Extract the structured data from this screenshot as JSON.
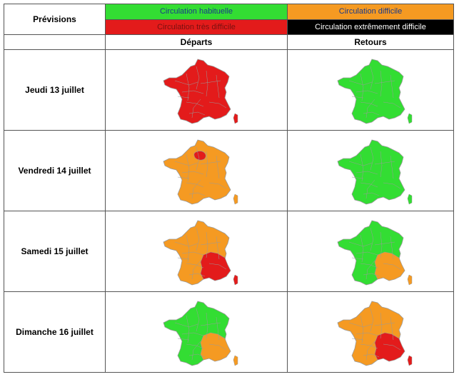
{
  "header": {
    "label": "Prévisions"
  },
  "legend": [
    {
      "label": "Circulation habituelle",
      "color": "#33dd33",
      "text_color": "#1a3a8a"
    },
    {
      "label": "Circulation difficile",
      "color": "#f59a22",
      "text_color": "#1a3a8a"
    },
    {
      "label": "Circulation très difficile",
      "color": "#e31b1b",
      "text_color": "#7a1010"
    },
    {
      "label": "Circulation extrêmement difficile",
      "color": "#000000",
      "text_color": "#ffffff"
    }
  ],
  "columns": {
    "departs": "Départs",
    "retours": "Retours"
  },
  "rows": [
    {
      "label": "Jeudi 13 juillet",
      "depart_map": "france-map-all-red",
      "retour_map": "france-map-all-green"
    },
    {
      "label": "Vendredi 14 juillet",
      "depart_map": "france-map-orange-paris-red",
      "retour_map": "france-map-all-green"
    },
    {
      "label": "Samedi 15 juillet",
      "depart_map": "france-map-orange-southeast-red",
      "retour_map": "france-map-green-southeast-orange"
    },
    {
      "label": "Dimanche 16 juillet",
      "depart_map": "france-map-green-southeast-orange",
      "retour_map": "france-map-orange-southeast-red"
    }
  ],
  "colors": {
    "green": "#33dd33",
    "orange": "#f59a22",
    "red": "#e31b1b",
    "border": "#9a9a9a"
  }
}
